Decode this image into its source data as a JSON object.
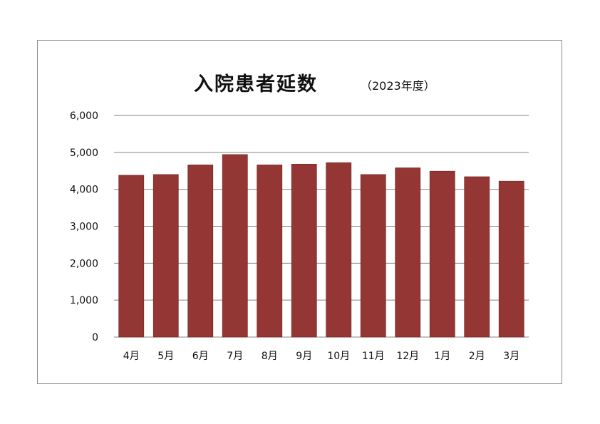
{
  "chart_data": {
    "type": "bar",
    "title": "入院患者延数",
    "subtitle": "（2023年度）",
    "categories": [
      "4月",
      "5月",
      "6月",
      "7月",
      "8月",
      "9月",
      "10月",
      "11月",
      "12月",
      "1月",
      "2月",
      "3月"
    ],
    "series": [
      {
        "values": [
          4380,
          4400,
          4660,
          4940,
          4660,
          4680,
          4720,
          4400,
          4580,
          4490,
          4340,
          4220
        ]
      }
    ],
    "ylim": [
      0,
      6000
    ],
    "yticks": [
      "0",
      "1,000",
      "2,000",
      "3,000",
      "4,000",
      "5,000",
      "6,000"
    ],
    "ytick_values": [
      0,
      1000,
      2000,
      3000,
      4000,
      5000,
      6000
    ],
    "grid": true,
    "legend": "none",
    "bar_color": "#943634",
    "gridline_color": "#868686"
  }
}
